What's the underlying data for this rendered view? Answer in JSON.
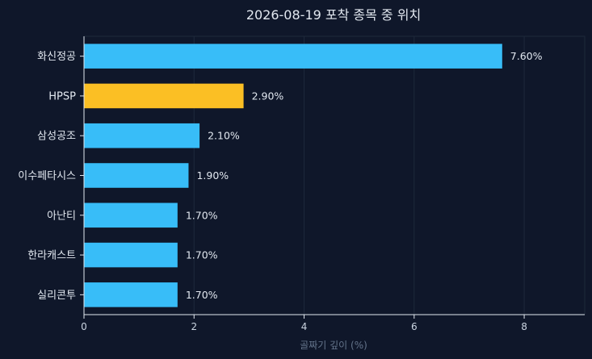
{
  "chart_data": {
    "type": "bar",
    "orientation": "horizontal",
    "title": "2026-08-19 포착 종목 중 위치",
    "xlabel": "골짜기 깊이 (%)",
    "ylabel": "",
    "xlim": [
      0,
      9.1
    ],
    "xticks": [
      0,
      2,
      4,
      6,
      8
    ],
    "grid": true,
    "categories": [
      "화신정공",
      "HPSP",
      "삼성공조",
      "이수페타시스",
      "아난티",
      "한라캐스트",
      "실리콘투"
    ],
    "values": [
      7.6,
      2.9,
      2.1,
      1.9,
      1.7,
      1.7,
      1.7
    ],
    "value_labels": [
      "7.60%",
      "2.90%",
      "2.10%",
      "1.90%",
      "1.70%",
      "1.70%",
      "1.70%"
    ],
    "highlight_category": "HPSP",
    "colors": {
      "background": "#0f172a",
      "bar": "#38bdf8",
      "highlight": "#fbbf24",
      "grid": "#1e293b",
      "axis": "#e2e8f0"
    }
  }
}
